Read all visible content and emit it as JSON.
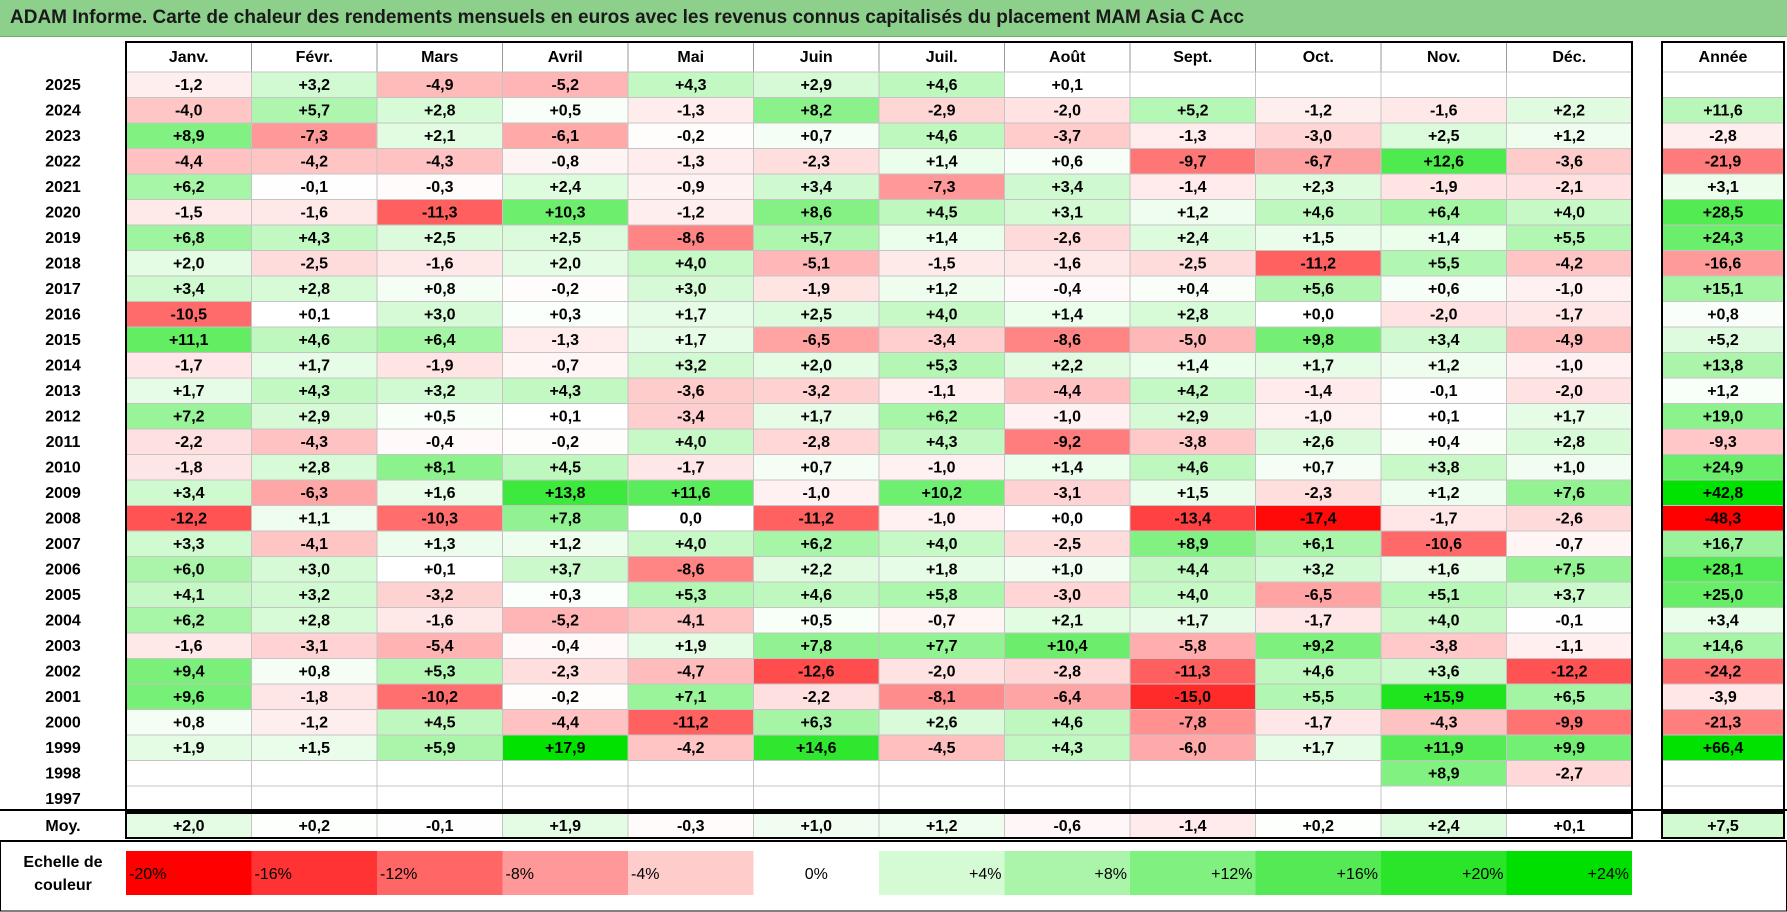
{
  "title": "ADAM Informe. Carte de chaleur des rendements mensuels en euros avec les revenus connus capitalisés du placement MAM Asia C Acc",
  "chart_data": {
    "type": "heatmap",
    "months": [
      "Janv.",
      "Févr.",
      "Mars",
      "Avril",
      "Mai",
      "Juin",
      "Juil.",
      "Août",
      "Sept.",
      "Oct.",
      "Nov.",
      "Déc."
    ],
    "annual_label": "Année",
    "avg_label": "Moy.",
    "rows": [
      {
        "year": "2025",
        "months": [
          "-1,2",
          "+3,2",
          "-4,9",
          "-5,2",
          "+4,3",
          "+2,9",
          "+4,6",
          "+0,1",
          "",
          "",
          "",
          ""
        ],
        "annual": ""
      },
      {
        "year": "2024",
        "months": [
          "-4,0",
          "+5,7",
          "+2,8",
          "+0,5",
          "-1,3",
          "+8,2",
          "-2,9",
          "-2,0",
          "+5,2",
          "-1,2",
          "-1,6",
          "+2,2"
        ],
        "annual": "+11,6"
      },
      {
        "year": "2023",
        "months": [
          "+8,9",
          "-7,3",
          "+2,1",
          "-6,1",
          "-0,2",
          "+0,7",
          "+4,6",
          "-3,7",
          "-1,3",
          "-3,0",
          "+2,5",
          "+1,2"
        ],
        "annual": "-2,8"
      },
      {
        "year": "2022",
        "months": [
          "-4,4",
          "-4,2",
          "-4,3",
          "-0,8",
          "-1,3",
          "-2,3",
          "+1,4",
          "+0,6",
          "-9,7",
          "-6,7",
          "+12,6",
          "-3,6"
        ],
        "annual": "-21,9"
      },
      {
        "year": "2021",
        "months": [
          "+6,2",
          "-0,1",
          "-0,3",
          "+2,4",
          "-0,9",
          "+3,4",
          "-7,3",
          "+3,4",
          "-1,4",
          "+2,3",
          "-1,9",
          "-2,1"
        ],
        "annual": "+3,1"
      },
      {
        "year": "2020",
        "months": [
          "-1,5",
          "-1,6",
          "-11,3",
          "+10,3",
          "-1,2",
          "+8,6",
          "+4,5",
          "+3,1",
          "+1,2",
          "+4,6",
          "+6,4",
          "+4,0"
        ],
        "annual": "+28,5"
      },
      {
        "year": "2019",
        "months": [
          "+6,8",
          "+4,3",
          "+2,5",
          "+2,5",
          "-8,6",
          "+5,7",
          "+1,4",
          "-2,6",
          "+2,4",
          "+1,5",
          "+1,4",
          "+5,5"
        ],
        "annual": "+24,3"
      },
      {
        "year": "2018",
        "months": [
          "+2,0",
          "-2,5",
          "-1,6",
          "+2,0",
          "+4,0",
          "-5,1",
          "-1,5",
          "-1,6",
          "-2,5",
          "-11,2",
          "+5,5",
          "-4,2"
        ],
        "annual": "-16,6"
      },
      {
        "year": "2017",
        "months": [
          "+3,4",
          "+2,8",
          "+0,8",
          "-0,2",
          "+3,0",
          "-1,9",
          "+1,2",
          "-0,4",
          "+0,4",
          "+5,6",
          "+0,6",
          "-1,0"
        ],
        "annual": "+15,1"
      },
      {
        "year": "2016",
        "months": [
          "-10,5",
          "+0,1",
          "+3,0",
          "+0,3",
          "+1,7",
          "+2,5",
          "+4,0",
          "+1,4",
          "+2,8",
          "+0,0",
          "-2,0",
          "-1,7"
        ],
        "annual": "+0,8"
      },
      {
        "year": "2015",
        "months": [
          "+11,1",
          "+4,6",
          "+6,4",
          "-1,3",
          "+1,7",
          "-6,5",
          "-3,4",
          "-8,6",
          "-5,0",
          "+9,8",
          "+3,4",
          "-4,9"
        ],
        "annual": "+5,2"
      },
      {
        "year": "2014",
        "months": [
          "-1,7",
          "+1,7",
          "-1,9",
          "-0,7",
          "+3,2",
          "+2,0",
          "+5,3",
          "+2,2",
          "+1,4",
          "+1,7",
          "+1,2",
          "-1,0"
        ],
        "annual": "+13,8"
      },
      {
        "year": "2013",
        "months": [
          "+1,7",
          "+4,3",
          "+3,2",
          "+4,3",
          "-3,6",
          "-3,2",
          "-1,1",
          "-4,4",
          "+4,2",
          "-1,4",
          "-0,1",
          "-2,0"
        ],
        "annual": "+1,2"
      },
      {
        "year": "2012",
        "months": [
          "+7,2",
          "+2,9",
          "+0,5",
          "+0,1",
          "-3,4",
          "+1,7",
          "+6,2",
          "-1,0",
          "+2,9",
          "-1,0",
          "+0,1",
          "+1,7"
        ],
        "annual": "+19,0"
      },
      {
        "year": "2011",
        "months": [
          "-2,2",
          "-4,3",
          "-0,4",
          "-0,2",
          "+4,0",
          "-2,8",
          "+4,3",
          "-9,2",
          "-3,8",
          "+2,6",
          "+0,4",
          "+2,8"
        ],
        "annual": "-9,3"
      },
      {
        "year": "2010",
        "months": [
          "-1,8",
          "+2,8",
          "+8,1",
          "+4,5",
          "-1,7",
          "+0,7",
          "-1,0",
          "+1,4",
          "+4,6",
          "+0,7",
          "+3,8",
          "+1,0"
        ],
        "annual": "+24,9"
      },
      {
        "year": "2009",
        "months": [
          "+3,4",
          "-6,3",
          "+1,6",
          "+13,8",
          "+11,6",
          "-1,0",
          "+10,2",
          "-3,1",
          "+1,5",
          "-2,3",
          "+1,2",
          "+7,6"
        ],
        "annual": "+42,8"
      },
      {
        "year": "2008",
        "months": [
          "-12,2",
          "+1,1",
          "-10,3",
          "+7,8",
          "0,0",
          "-11,2",
          "-1,0",
          "+0,0",
          "-13,4",
          "-17,4",
          "-1,7",
          "-2,6"
        ],
        "annual": "-48,3"
      },
      {
        "year": "2007",
        "months": [
          "+3,3",
          "-4,1",
          "+1,3",
          "+1,2",
          "+4,0",
          "+6,2",
          "+4,0",
          "-2,5",
          "+8,9",
          "+6,1",
          "-10,6",
          "-0,7"
        ],
        "annual": "+16,7"
      },
      {
        "year": "2006",
        "months": [
          "+6,0",
          "+3,0",
          "+0,1",
          "+3,7",
          "-8,6",
          "+2,2",
          "+1,8",
          "+1,0",
          "+4,4",
          "+3,2",
          "+1,6",
          "+7,5"
        ],
        "annual": "+28,1"
      },
      {
        "year": "2005",
        "months": [
          "+4,1",
          "+3,2",
          "-3,2",
          "+0,3",
          "+5,3",
          "+4,6",
          "+5,8",
          "-3,0",
          "+4,0",
          "-6,5",
          "+5,1",
          "+3,7"
        ],
        "annual": "+25,0"
      },
      {
        "year": "2004",
        "months": [
          "+6,2",
          "+2,8",
          "-1,6",
          "-5,2",
          "-4,1",
          "+0,5",
          "-0,7",
          "+2,1",
          "+1,7",
          "-1,7",
          "+4,0",
          "-0,1"
        ],
        "annual": "+3,4"
      },
      {
        "year": "2003",
        "months": [
          "-1,6",
          "-3,1",
          "-5,4",
          "-0,4",
          "+1,9",
          "+7,8",
          "+7,7",
          "+10,4",
          "-5,8",
          "+9,2",
          "-3,8",
          "-1,1"
        ],
        "annual": "+14,6"
      },
      {
        "year": "2002",
        "months": [
          "+9,4",
          "+0,8",
          "+5,3",
          "-2,3",
          "-4,7",
          "-12,6",
          "-2,0",
          "-2,8",
          "-11,3",
          "+4,6",
          "+3,6",
          "-12,2"
        ],
        "annual": "-24,2"
      },
      {
        "year": "2001",
        "months": [
          "+9,6",
          "-1,8",
          "-10,2",
          "-0,2",
          "+7,1",
          "-2,2",
          "-8,1",
          "-6,4",
          "-15,0",
          "+5,5",
          "+15,9",
          "+6,5"
        ],
        "annual": "-3,9"
      },
      {
        "year": "2000",
        "months": [
          "+0,8",
          "-1,2",
          "+4,5",
          "-4,4",
          "-11,2",
          "+6,3",
          "+2,6",
          "+4,6",
          "-7,8",
          "-1,7",
          "-4,3",
          "-9,9"
        ],
        "annual": "-21,3"
      },
      {
        "year": "1999",
        "months": [
          "+1,9",
          "+1,5",
          "+5,9",
          "+17,9",
          "-4,2",
          "+14,6",
          "-4,5",
          "+4,3",
          "-6,0",
          "+1,7",
          "+11,9",
          "+9,9"
        ],
        "annual": "+66,4"
      },
      {
        "year": "1998",
        "months": [
          "",
          "",
          "",
          "",
          "",
          "",
          "",
          "",
          "",
          "",
          "+8,9",
          "-2,7"
        ],
        "annual": ""
      },
      {
        "year": "1997",
        "months": [
          "",
          "",
          "",
          "",
          "",
          "",
          "",
          "",
          "",
          "",
          "",
          ""
        ],
        "annual": ""
      }
    ],
    "average": {
      "months": [
        "+2,0",
        "+0,2",
        "-0,1",
        "+1,9",
        "-0,3",
        "+1,0",
        "+1,2",
        "-0,6",
        "-1,4",
        "+0,2",
        "+2,4",
        "+0,1"
      ],
      "annual": "+7,5"
    },
    "scale": {
      "label_line1": "Echelle de",
      "label_line2": "couleur",
      "steps": [
        {
          "label": "-20%",
          "value": -20,
          "color": "#ff0000"
        },
        {
          "label": "-16%",
          "value": -16,
          "color": "#ff3333"
        },
        {
          "label": "-12%",
          "value": -12,
          "color": "#ff6666"
        },
        {
          "label": "-8%",
          "value": -8,
          "color": "#ff9999"
        },
        {
          "label": "-4%",
          "value": -4,
          "color": "#ffcccc"
        },
        {
          "label": "0%",
          "value": 0,
          "color": "#ffffff"
        },
        {
          "label": "+4%",
          "value": 4,
          "color": "#d5fbd5"
        },
        {
          "label": "+8%",
          "value": 8,
          "color": "#aaf5aa"
        },
        {
          "label": "+12%",
          "value": 12,
          "color": "#80f080"
        },
        {
          "label": "+16%",
          "value": 16,
          "color": "#55ea55"
        },
        {
          "label": "+20%",
          "value": 20,
          "color": "#2ae52a"
        },
        {
          "label": "+24%",
          "value": 24,
          "color": "#00e000"
        }
      ]
    }
  }
}
